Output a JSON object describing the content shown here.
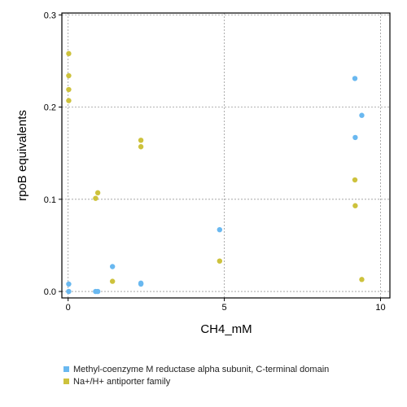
{
  "chart_data": {
    "type": "scatter",
    "xlabel": "CH4_mM",
    "ylabel": "rpoB equivalents",
    "xlim": [
      -0.2,
      10.3
    ],
    "ylim": [
      -0.007,
      0.302
    ],
    "x_ticks": [
      0,
      5,
      10
    ],
    "y_ticks": [
      0.0,
      0.1,
      0.2,
      0.3
    ],
    "x_tick_labels": [
      "0",
      "5",
      "10"
    ],
    "y_tick_labels": [
      "0.0",
      "0.1",
      "0.2",
      "0.3"
    ],
    "grid": true,
    "legend_position": "bottom",
    "series": [
      {
        "name": "Methyl-coenzyme M reductase alpha subunit, C-terminal domain",
        "color": "#69b8f0",
        "points": [
          [
            0.02,
            0.008
          ],
          [
            0.02,
            0.0
          ],
          [
            0.88,
            0.0
          ],
          [
            0.95,
            0.0
          ],
          [
            1.42,
            0.027
          ],
          [
            2.33,
            0.009
          ],
          [
            2.33,
            0.008
          ],
          [
            4.85,
            0.067
          ],
          [
            9.18,
            0.231
          ],
          [
            9.19,
            0.167
          ],
          [
            9.4,
            0.191
          ]
        ]
      },
      {
        "name": "Na+/H+ antiporter family",
        "color": "#cdc23c",
        "points": [
          [
            0.02,
            0.258
          ],
          [
            0.02,
            0.234
          ],
          [
            0.02,
            0.219
          ],
          [
            0.02,
            0.207
          ],
          [
            0.88,
            0.101
          ],
          [
            0.95,
            0.107
          ],
          [
            1.42,
            0.011
          ],
          [
            2.33,
            0.164
          ],
          [
            2.33,
            0.157
          ],
          [
            4.85,
            0.033
          ],
          [
            9.18,
            0.121
          ],
          [
            9.19,
            0.093
          ],
          [
            9.4,
            0.013
          ]
        ]
      }
    ]
  }
}
